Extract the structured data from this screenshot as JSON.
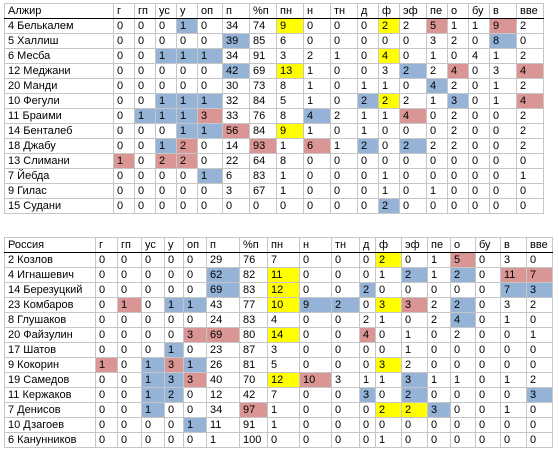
{
  "tables": [
    {
      "name": "algeria",
      "title": "Алжир",
      "headers": [
        "г",
        "гп",
        "ус",
        "у",
        "оп",
        "п",
        "%п",
        "пн",
        "н",
        "тн",
        "д",
        "ф",
        "эф",
        "пе",
        "о",
        "бу",
        "в",
        "вве"
      ],
      "rows": [
        {
          "player": "4 Белькалем",
          "cells": [
            "0",
            "0",
            "0",
            "1",
            "0",
            "34",
            "74",
            "9",
            "0",
            "0",
            "0",
            "2",
            "2",
            "5",
            "1",
            "1",
            "9",
            "2"
          ],
          "colors": {
            "3": "b",
            "7": "y",
            "11": "y",
            "13": "r",
            "16": "r"
          }
        },
        {
          "player": "5 Халлиш",
          "cells": [
            "0",
            "0",
            "0",
            "0",
            "0",
            "39",
            "85",
            "6",
            "0",
            "0",
            "0",
            "0",
            "0",
            "3",
            "2",
            "0",
            "8",
            "0"
          ],
          "colors": {
            "5": "b",
            "16": "b"
          }
        },
        {
          "player": "6 Месба",
          "cells": [
            "0",
            "0",
            "1",
            "1",
            "1",
            "34",
            "91",
            "3",
            "2",
            "1",
            "0",
            "4",
            "0",
            "1",
            "0",
            "4",
            "1",
            "2"
          ],
          "colors": {
            "2": "b",
            "3": "b",
            "4": "b",
            "11": "y"
          }
        },
        {
          "player": "12 Меджани",
          "cells": [
            "0",
            "0",
            "0",
            "0",
            "0",
            "42",
            "69",
            "13",
            "1",
            "0",
            "0",
            "3",
            "2",
            "2",
            "4",
            "0",
            "3",
            "4"
          ],
          "colors": {
            "5": "b",
            "7": "y",
            "12": "b",
            "14": "r",
            "17": "r"
          }
        },
        {
          "player": "20 Манди",
          "cells": [
            "0",
            "0",
            "0",
            "0",
            "0",
            "30",
            "73",
            "8",
            "1",
            "0",
            "1",
            "1",
            "0",
            "4",
            "2",
            "0",
            "1",
            "2"
          ],
          "colors": {
            "13": "b"
          }
        },
        {
          "player": "10 Фегули",
          "cells": [
            "0",
            "0",
            "1",
            "1",
            "1",
            "32",
            "84",
            "5",
            "1",
            "0",
            "2",
            "2",
            "2",
            "1",
            "3",
            "0",
            "1",
            "4"
          ],
          "colors": {
            "2": "b",
            "3": "b",
            "4": "b",
            "10": "b",
            "11": "y",
            "14": "b",
            "17": "r"
          }
        },
        {
          "player": "11 Браими",
          "cells": [
            "0",
            "1",
            "1",
            "1",
            "3",
            "33",
            "76",
            "8",
            "4",
            "2",
            "1",
            "1",
            "4",
            "0",
            "2",
            "0",
            "0",
            "2"
          ],
          "colors": {
            "1": "b",
            "2": "b",
            "3": "b",
            "4": "r",
            "8": "b",
            "12": "r"
          }
        },
        {
          "player": "14 Бенталеб",
          "cells": [
            "0",
            "0",
            "0",
            "1",
            "1",
            "56",
            "84",
            "9",
            "1",
            "0",
            "1",
            "0",
            "0",
            "0",
            "2",
            "0",
            "0",
            "2"
          ],
          "colors": {
            "3": "b",
            "4": "b",
            "5": "r",
            "7": "y"
          }
        },
        {
          "player": "18 Джабу",
          "cells": [
            "0",
            "0",
            "1",
            "2",
            "0",
            "14",
            "93",
            "1",
            "6",
            "1",
            "2",
            "0",
            "2",
            "2",
            "2",
            "0",
            "0",
            "2"
          ],
          "colors": {
            "2": "b",
            "3": "r",
            "6": "r",
            "8": "r",
            "10": "b",
            "12": "b"
          }
        },
        {
          "player": "13 Слимани",
          "cells": [
            "1",
            "0",
            "2",
            "2",
            "0",
            "22",
            "64",
            "8",
            "0",
            "0",
            "0",
            "0",
            "0",
            "0",
            "0",
            "0",
            "0",
            "0"
          ],
          "colors": {
            "0": "r",
            "2": "r",
            "3": "r"
          }
        },
        {
          "player": "7 Йебда",
          "cells": [
            "0",
            "0",
            "0",
            "0",
            "1",
            "6",
            "83",
            "1",
            "0",
            "0",
            "0",
            "1",
            "0",
            "0",
            "0",
            "0",
            "0",
            "1"
          ],
          "colors": {
            "4": "b"
          }
        },
        {
          "player": "9 Гилас",
          "cells": [
            "0",
            "0",
            "0",
            "0",
            "0",
            "3",
            "67",
            "1",
            "0",
            "0",
            "0",
            "1",
            "0",
            "1",
            "0",
            "0",
            "0",
            "0"
          ],
          "colors": {}
        },
        {
          "player": "15 Судани",
          "cells": [
            "0",
            "0",
            "0",
            "0",
            "0",
            "0",
            "0",
            "0",
            "0",
            "0",
            "0",
            "2",
            "0",
            "0",
            "0",
            "0",
            "0",
            "0"
          ],
          "colors": {
            "11": "b"
          }
        }
      ]
    },
    {
      "name": "russia",
      "title": "Россия",
      "headers": [
        "г",
        "гп",
        "ус",
        "у",
        "оп",
        "п",
        "%п",
        "пн",
        "н",
        "тн",
        "д",
        "ф",
        "эф",
        "пе",
        "о",
        "бу",
        "в",
        "вве"
      ],
      "rows": [
        {
          "player": "2 Козлов",
          "cells": [
            "0",
            "0",
            "0",
            "0",
            "0",
            "29",
            "76",
            "7",
            "0",
            "0",
            "0",
            "2",
            "0",
            "1",
            "5",
            "0",
            "3",
            "0"
          ],
          "colors": {
            "11": "y",
            "14": "r"
          }
        },
        {
          "player": "4 Игнашевич",
          "cells": [
            "0",
            "0",
            "0",
            "0",
            "0",
            "62",
            "82",
            "11",
            "0",
            "0",
            "0",
            "1",
            "2",
            "1",
            "2",
            "0",
            "11",
            "7"
          ],
          "colors": {
            "5": "b",
            "7": "y",
            "12": "b",
            "14": "b",
            "16": "r",
            "17": "r"
          }
        },
        {
          "player": "14 Березуцкий",
          "cells": [
            "0",
            "0",
            "0",
            "0",
            "0",
            "69",
            "83",
            "12",
            "0",
            "0",
            "2",
            "0",
            "0",
            "0",
            "0",
            "0",
            "7",
            "3"
          ],
          "colors": {
            "5": "b",
            "7": "y",
            "10": "b",
            "16": "b",
            "17": "b"
          }
        },
        {
          "player": "23 Комбаров",
          "cells": [
            "0",
            "1",
            "0",
            "1",
            "1",
            "43",
            "77",
            "10",
            "9",
            "2",
            "0",
            "3",
            "3",
            "2",
            "2",
            "0",
            "3",
            "2"
          ],
          "colors": {
            "1": "r",
            "3": "b",
            "4": "b",
            "7": "y",
            "8": "b",
            "9": "b",
            "11": "y",
            "12": "r",
            "14": "b"
          }
        },
        {
          "player": "8 Глушаков",
          "cells": [
            "0",
            "0",
            "0",
            "0",
            "0",
            "24",
            "83",
            "4",
            "0",
            "0",
            "2",
            "1",
            "0",
            "2",
            "4",
            "0",
            "1",
            "0"
          ],
          "colors": {
            "14": "b"
          }
        },
        {
          "player": "20 Файзулин",
          "cells": [
            "0",
            "0",
            "0",
            "0",
            "3",
            "69",
            "80",
            "14",
            "0",
            "0",
            "4",
            "0",
            "1",
            "0",
            "2",
            "0",
            "0",
            "1"
          ],
          "colors": {
            "4": "r",
            "5": "r",
            "7": "y",
            "10": "r"
          }
        },
        {
          "player": "17 Шатов",
          "cells": [
            "0",
            "0",
            "0",
            "1",
            "0",
            "23",
            "87",
            "3",
            "0",
            "0",
            "0",
            "0",
            "1",
            "0",
            "0",
            "0",
            "0",
            "0"
          ],
          "colors": {
            "3": "b"
          }
        },
        {
          "player": "9 Кокорин",
          "cells": [
            "1",
            "0",
            "1",
            "3",
            "1",
            "26",
            "81",
            "5",
            "0",
            "0",
            "0",
            "3",
            "2",
            "0",
            "0",
            "0",
            "0",
            "0"
          ],
          "colors": {
            "0": "r",
            "2": "b",
            "3": "r",
            "4": "b",
            "11": "y"
          }
        },
        {
          "player": "19 Самедов",
          "cells": [
            "0",
            "0",
            "1",
            "3",
            "3",
            "40",
            "70",
            "12",
            "10",
            "3",
            "1",
            "1",
            "3",
            "1",
            "1",
            "0",
            "1",
            "2"
          ],
          "colors": {
            "2": "b",
            "3": "b",
            "4": "r",
            "7": "y",
            "8": "r",
            "12": "b"
          }
        },
        {
          "player": "11 Кержаков",
          "cells": [
            "0",
            "0",
            "1",
            "2",
            "0",
            "12",
            "42",
            "7",
            "0",
            "0",
            "3",
            "0",
            "2",
            "0",
            "0",
            "0",
            "0",
            "3"
          ],
          "colors": {
            "2": "b",
            "3": "b",
            "10": "b",
            "12": "b",
            "17": "b"
          }
        },
        {
          "player": "7 Денисов",
          "cells": [
            "0",
            "0",
            "1",
            "0",
            "0",
            "34",
            "97",
            "1",
            "0",
            "0",
            "0",
            "2",
            "2",
            "3",
            "0",
            "0",
            "1",
            "0"
          ],
          "colors": {
            "2": "b",
            "6": "r",
            "11": "y",
            "12": "y",
            "13": "b"
          }
        },
        {
          "player": "10 Дзагоев",
          "cells": [
            "0",
            "0",
            "0",
            "0",
            "1",
            "11",
            "91",
            "1",
            "0",
            "0",
            "0",
            "0",
            "0",
            "0",
            "0",
            "0",
            "0",
            "0"
          ],
          "colors": {
            "4": "b"
          }
        },
        {
          "player": "6 Канунников",
          "cells": [
            "0",
            "0",
            "0",
            "0",
            "0",
            "1",
            "100",
            "0",
            "0",
            "0",
            "0",
            "1",
            "0",
            "0",
            "0",
            "0",
            "0",
            "0"
          ],
          "colors": {}
        }
      ]
    }
  ]
}
